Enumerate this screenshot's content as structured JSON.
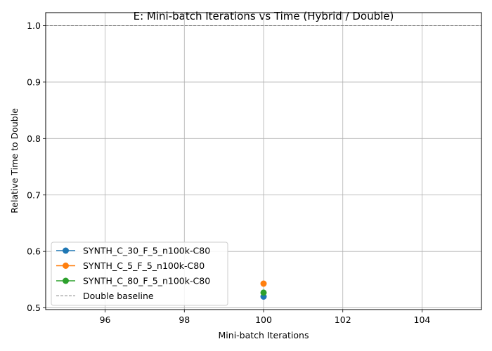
{
  "chart_data": {
    "type": "line",
    "title": "E: Mini-batch Iterations vs Time (Hybrid / Double)",
    "xlabel": "Mini-batch Iterations",
    "ylabel": "Relative Time to Double",
    "xlim": [
      94.5,
      105.5
    ],
    "ylim": [
      0.497,
      1.023
    ],
    "xticks": [
      96,
      98,
      100,
      102,
      104
    ],
    "yticks": [
      0.5,
      0.6,
      0.7,
      0.8,
      0.9,
      1.0
    ],
    "xtick_labels": [
      "96",
      "98",
      "100",
      "102",
      "104"
    ],
    "ytick_labels": [
      "0.5",
      "0.6",
      "0.7",
      "0.8",
      "0.9",
      "1.0"
    ],
    "grid": true,
    "legend_position": "lower-left",
    "series": [
      {
        "name": "SYNTH_C_30_F_5_n100k-C80",
        "color": "#1f77b4",
        "x": [
          100
        ],
        "y": [
          0.52
        ]
      },
      {
        "name": "SYNTH_C_5_F_5_n100k-C80",
        "color": "#ff7f0e",
        "x": [
          100
        ],
        "y": [
          0.543
        ]
      },
      {
        "name": "SYNTH_C_80_F_5_n100k-C80",
        "color": "#2ca02c",
        "x": [
          100
        ],
        "y": [
          0.527
        ]
      }
    ],
    "baseline": {
      "name": "Double baseline",
      "y": 1.0,
      "color": "#808080",
      "style": "dashed"
    }
  }
}
